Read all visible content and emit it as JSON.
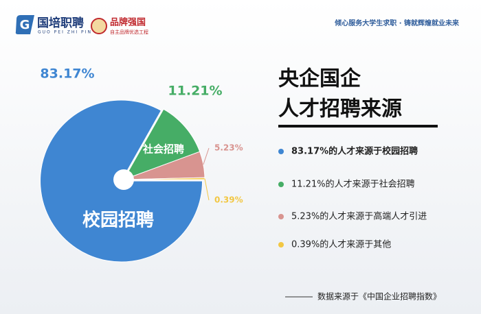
{
  "header": {
    "logo_text": "国培职聘",
    "logo_pinyin": "GUO PEI ZHI PIN",
    "brand": "品牌强国",
    "brand_sub": "自主品牌优选工程",
    "tagline": "倾心服务大学生求职 · 铸就辉煌就业未来"
  },
  "chart_data": {
    "type": "pie",
    "title_lines": [
      "央企国企",
      "人才招聘来源"
    ],
    "categories": [
      "校园招聘",
      "社会招聘",
      null,
      null
    ],
    "values": [
      83.17,
      11.21,
      5.23,
      0.39
    ],
    "value_labels": [
      "83.17%",
      "11.21%",
      "5.23%",
      "0.39%"
    ],
    "colors": [
      "#3f86d2",
      "#46ad66",
      "#d89490",
      "#f2c744"
    ],
    "legend": [
      "83.17%的人才来源于校园招聘",
      "11.21%的人才来源于社会招聘",
      "5.23%的人才来源于高端人才引进",
      "0.39%的人才来源于其他"
    ]
  },
  "footer": {
    "source": "数据来源于《中国企业招聘指数》"
  }
}
